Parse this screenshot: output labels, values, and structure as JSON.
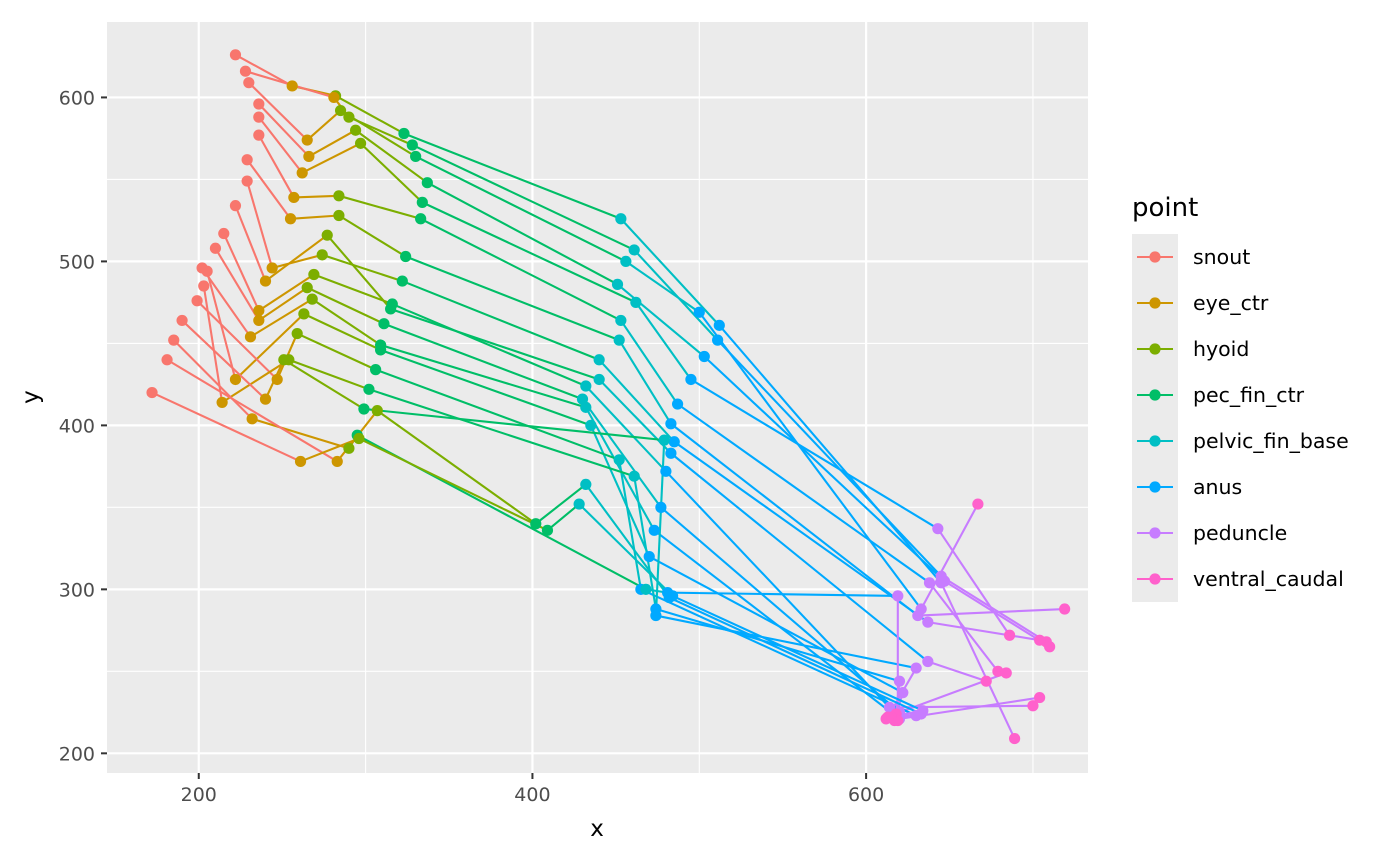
{
  "chart_data": {
    "type": "line",
    "xlabel": "x",
    "ylabel": "y",
    "xlim": [
      145,
      733
    ],
    "ylim": [
      188,
      646
    ],
    "x_ticks": [
      200,
      400,
      600
    ],
    "y_ticks": [
      200,
      300,
      400,
      500,
      600
    ],
    "grid": true,
    "legend_title": "point",
    "legend_position": "right",
    "points": [
      "snout",
      "eye_ctr",
      "hyoid",
      "pec_fin_ctr",
      "pelvic_fin_base",
      "anus",
      "peduncle",
      "ventral_caudal"
    ],
    "colors": {
      "snout": "#F8766D",
      "eye_ctr": "#CD9600",
      "hyoid": "#7CAE00",
      "pec_fin_ctr": "#00BE67",
      "pelvic_fin_base": "#00BFC4",
      "anus": "#00A9FF",
      "peduncle": "#C77CFF",
      "ventral_caudal": "#FF61CC"
    },
    "fish": [
      [
        [
          222,
          626
        ],
        [
          256,
          607
        ],
        [
          282,
          601
        ],
        [
          323,
          578
        ],
        [
          453,
          526
        ],
        [
          512,
          461
        ],
        [
          645,
          304
        ],
        [
          689,
          209
        ]
      ],
      [
        [
          228,
          616
        ],
        [
          281,
          600
        ],
        [
          290,
          588
        ],
        [
          328,
          571
        ],
        [
          461,
          507
        ],
        [
          511,
          452
        ],
        [
          645,
          308
        ],
        [
          708,
          268
        ]
      ],
      [
        [
          230,
          609
        ],
        [
          265,
          574
        ],
        [
          285,
          592
        ],
        [
          330,
          564
        ],
        [
          456,
          500
        ],
        [
          500,
          469
        ],
        [
          633,
          288
        ],
        [
          667,
          352
        ]
      ],
      [
        [
          236,
          596
        ],
        [
          266,
          564
        ],
        [
          294,
          580
        ],
        [
          337,
          548
        ],
        [
          451,
          486
        ],
        [
          503,
          442
        ],
        [
          647,
          305
        ],
        [
          710,
          265
        ]
      ],
      [
        [
          236,
          588
        ],
        [
          262,
          554
        ],
        [
          297,
          572
        ],
        [
          334,
          536
        ],
        [
          462,
          475
        ],
        [
          495,
          428
        ],
        [
          643,
          337
        ],
        [
          686,
          272
        ]
      ],
      [
        [
          236,
          577
        ],
        [
          257,
          539
        ],
        [
          284,
          540
        ],
        [
          333,
          526
        ],
        [
          453,
          464
        ],
        [
          487,
          413
        ],
        [
          638,
          304
        ],
        [
          679,
          250
        ]
      ],
      [
        [
          229,
          562
        ],
        [
          255,
          526
        ],
        [
          284,
          528
        ],
        [
          324,
          503
        ],
        [
          452,
          452
        ],
        [
          483,
          401
        ],
        [
          631,
          284
        ],
        [
          719,
          288
        ]
      ],
      [
        [
          229,
          549
        ],
        [
          244,
          496
        ],
        [
          274,
          504
        ],
        [
          322,
          488
        ],
        [
          440,
          440
        ],
        [
          485,
          390
        ],
        [
          637,
          280
        ],
        [
          704,
          269
        ]
      ],
      [
        [
          222,
          534
        ],
        [
          240,
          488
        ],
        [
          277,
          516
        ],
        [
          315,
          471
        ],
        [
          440,
          428
        ],
        [
          483,
          383
        ],
        [
          637,
          256
        ],
        [
          672,
          244
        ]
      ],
      [
        [
          215,
          517
        ],
        [
          236,
          470
        ],
        [
          269,
          492
        ],
        [
          316,
          474
        ],
        [
          432,
          424
        ],
        [
          480,
          372
        ],
        [
          614,
          228
        ],
        [
          700,
          229
        ]
      ],
      [
        [
          210,
          508
        ],
        [
          236,
          464
        ],
        [
          265,
          484
        ],
        [
          311,
          462
        ],
        [
          430,
          416
        ],
        [
          477,
          350
        ],
        [
          620,
          225
        ],
        [
          684,
          249
        ]
      ],
      [
        [
          202,
          496
        ],
        [
          231,
          454
        ],
        [
          268,
          477
        ],
        [
          309,
          449
        ],
        [
          432,
          411
        ],
        [
          473,
          336
        ],
        [
          620,
          221
        ],
        [
          704,
          234
        ]
      ],
      [
        [
          205,
          494
        ],
        [
          222,
          428
        ],
        [
          263,
          468
        ],
        [
          309,
          446
        ],
        [
          435,
          400
        ],
        [
          470,
          320
        ],
        [
          622,
          237
        ],
        [
          617,
          220
        ]
      ],
      [
        [
          199,
          476
        ],
        [
          247,
          428
        ],
        [
          259,
          456
        ],
        [
          306,
          434
        ],
        [
          452,
          379
        ],
        [
          465,
          300
        ],
        [
          630,
          223
        ],
        [
          612,
          221
        ]
      ],
      [
        [
          203,
          485
        ],
        [
          214,
          414
        ],
        [
          254,
          440
        ],
        [
          302,
          422
        ],
        [
          461,
          369
        ],
        [
          474,
          288
        ],
        [
          620,
          244
        ],
        [
          618,
          224
        ]
      ],
      [
        [
          190,
          464
        ],
        [
          240,
          416
        ],
        [
          251,
          440
        ],
        [
          299,
          410
        ],
        [
          479,
          391
        ],
        [
          474,
          284
        ],
        [
          630,
          252
        ],
        [
          613,
          222
        ]
      ],
      [
        [
          185,
          452
        ],
        [
          232,
          404
        ],
        [
          290,
          386
        ],
        [
          295,
          394
        ],
        [
          468,
          300
        ],
        [
          481,
          298
        ],
        [
          619,
          296
        ],
        [
          619,
          220
        ]
      ],
      [
        [
          181,
          440
        ],
        [
          283,
          378
        ],
        [
          307,
          409
        ],
        [
          402,
          340
        ],
        [
          432,
          364
        ],
        [
          482,
          295
        ],
        [
          633,
          224
        ],
        [
          615,
          222
        ]
      ],
      [
        [
          172,
          420
        ],
        [
          261,
          378
        ],
        [
          296,
          392
        ],
        [
          409,
          336
        ],
        [
          428,
          352
        ],
        [
          484,
          296
        ],
        [
          634,
          226
        ],
        [
          613,
          222
        ]
      ]
    ]
  }
}
